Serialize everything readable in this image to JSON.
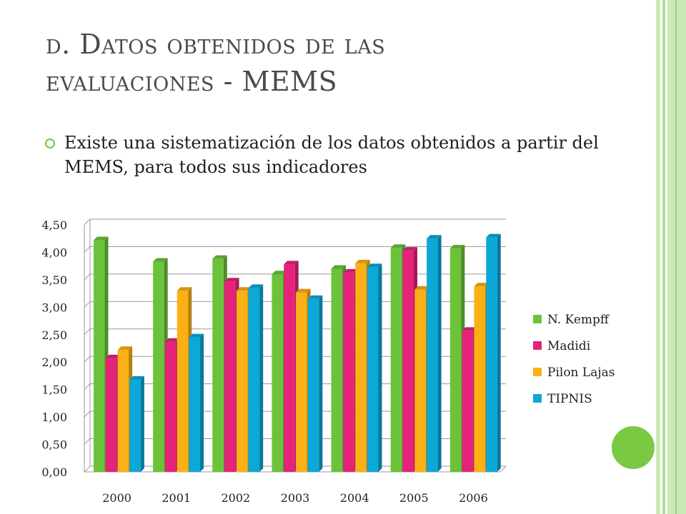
{
  "slide": {
    "title_line1": "d. Datos obtenidos de las",
    "title_line2": "evaluaciones - MEMS",
    "bullet": "Existe una sistematización de los datos obtenidos a partir del MEMS, para todos sus indicadores",
    "bullet_icon": "circle-outline-icon",
    "accent_color": "#7ac943"
  },
  "chart_data": {
    "type": "bar",
    "categories": [
      "2000",
      "2001",
      "2002",
      "2003",
      "2004",
      "2005",
      "2006"
    ],
    "series": [
      {
        "name": "N. Kempff",
        "color": "#6cc33a",
        "values": [
          4.22,
          3.83,
          3.88,
          3.6,
          3.7,
          4.08,
          4.07
        ]
      },
      {
        "name": "Madidi",
        "color": "#e6237a",
        "values": [
          2.07,
          2.37,
          3.47,
          3.78,
          3.63,
          4.03,
          2.57
        ]
      },
      {
        "name": "Pilon Lajas",
        "color": "#fbb116",
        "values": [
          2.22,
          3.3,
          3.3,
          3.27,
          3.8,
          3.32,
          3.38
        ]
      },
      {
        "name": "TIPNIS",
        "color": "#0ba8d8",
        "values": [
          1.68,
          2.45,
          3.35,
          3.15,
          3.73,
          4.25,
          4.27
        ]
      }
    ],
    "yticks": [
      "0,00",
      "0,50",
      "1,00",
      "1,50",
      "2,00",
      "2,50",
      "3,00",
      "3,50",
      "4,00",
      "4,50"
    ],
    "ylim": [
      0,
      4.5
    ],
    "grid": true,
    "legend_position": "right"
  }
}
